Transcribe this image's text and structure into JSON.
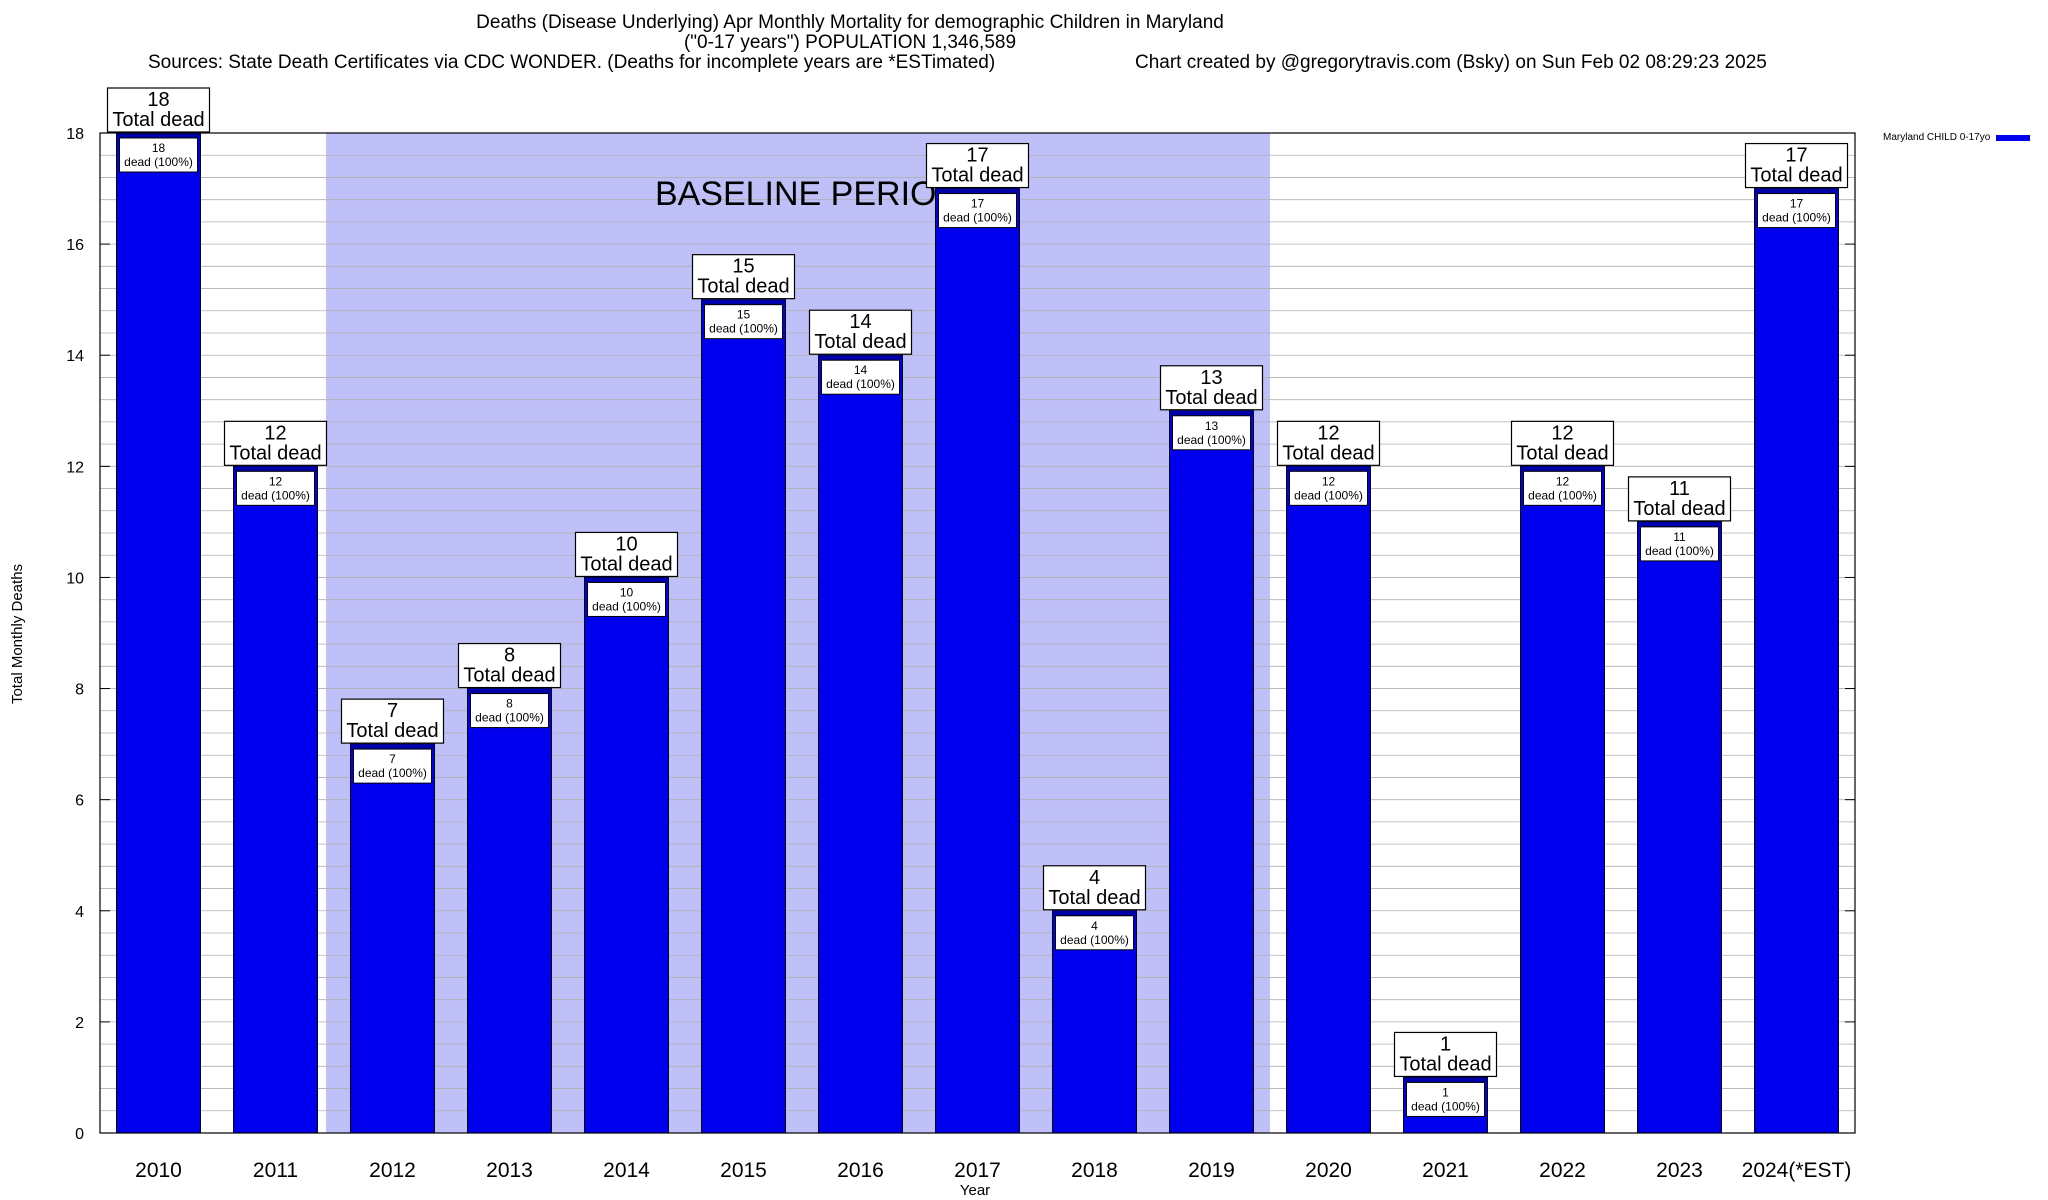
{
  "header": {
    "title": "Deaths (Disease Underlying) Apr Monthly Mortality for demographic Children in Maryland",
    "subtitle": "(\"0-17 years\") POPULATION 1,346,589",
    "sources": "Sources: State Death Certificates via CDC WONDER. (Deaths for incomplete years are *ESTimated)",
    "credit": "Chart created by @gregorytravis.com (Bsky) on Sun Feb 02 08:29:23 2025"
  },
  "colors": {
    "bar": "#0000ee",
    "bar_cap": "#0000aa",
    "baseline_shade": "#c0c0f8",
    "grid": "#b0b0b0"
  },
  "chart_data": {
    "type": "bar",
    "title": "Deaths (Disease Underlying) Apr Monthly Mortality for demographic Children in Maryland",
    "xlabel": "Year",
    "ylabel": "Total Monthly Deaths",
    "ylim": [
      0,
      18
    ],
    "yticks": [
      0,
      2,
      4,
      6,
      8,
      10,
      12,
      14,
      16,
      18
    ],
    "grid": true,
    "categories": [
      "2010",
      "2011",
      "2012",
      "2013",
      "2014",
      "2015",
      "2016",
      "2017",
      "2018",
      "2019",
      "2020",
      "2021",
      "2022",
      "2023",
      "2024(*EST)"
    ],
    "series": [
      {
        "name": "Maryland CHILD 0-17yo",
        "values": [
          18,
          12,
          7,
          8,
          10,
          15,
          14,
          17,
          4,
          13,
          12,
          1,
          12,
          11,
          17
        ]
      }
    ],
    "total_label_suffix": "Total dead",
    "inner_label_suffix": "dead (100%)",
    "baseline_period": {
      "label": "BASELINE PERIOD",
      "from": "2012",
      "to": "2019"
    },
    "legend_position": "top-right"
  }
}
